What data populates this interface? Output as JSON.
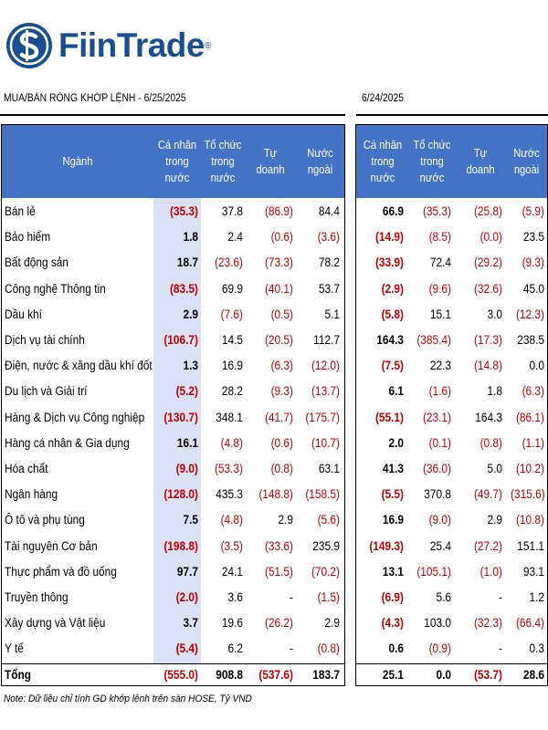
{
  "brand": {
    "name": "FiinTrade",
    "reg": "®"
  },
  "left_title": "MUA/BÁN RÒNG KHỚP LỆNH - 6/25/2025",
  "right_title": "6/24/2025",
  "headers": {
    "sector": "Ngành",
    "individual_l": [
      "Cá nhân",
      "trong",
      "nước"
    ],
    "institution_l": [
      "Tổ chức",
      "trong",
      "nước"
    ],
    "proprietary_l": [
      "Tự doanh"
    ],
    "foreign_l": [
      "Nước",
      "ngoài"
    ],
    "individual_r": [
      "Cá nhân",
      "trong nước"
    ],
    "institution_r": [
      "Tổ chức",
      "trong",
      "nước"
    ],
    "proprietary_r": [
      "Tự doanh"
    ],
    "foreign_r": [
      "Nước",
      "ngoài"
    ]
  },
  "rows": [
    {
      "name": "Bán lẻ",
      "l": [
        "(35.3)",
        "37.8",
        "(86.9)",
        "84.4"
      ],
      "r": [
        "66.9",
        "(35.3)",
        "(25.8)",
        "(5.9)"
      ]
    },
    {
      "name": "Bảo hiểm",
      "l": [
        "1.8",
        "2.4",
        "(0.6)",
        "(3.6)"
      ],
      "r": [
        "(14.9)",
        "(8.5)",
        "(0.0)",
        "23.5"
      ]
    },
    {
      "name": "Bất động sản",
      "l": [
        "18.7",
        "(23.6)",
        "(73.3)",
        "78.2"
      ],
      "r": [
        "(33.9)",
        "72.4",
        "(29.2)",
        "(9.3)"
      ]
    },
    {
      "name": "Công nghệ Thông tin",
      "l": [
        "(83.5)",
        "69.9",
        "(40.1)",
        "53.7"
      ],
      "r": [
        "(2.9)",
        "(9.6)",
        "(32.6)",
        "45.0"
      ]
    },
    {
      "name": "Dầu khí",
      "l": [
        "2.9",
        "(7.6)",
        "(0.5)",
        "5.1"
      ],
      "r": [
        "(5.8)",
        "15.1",
        "3.0",
        "(12.3)"
      ]
    },
    {
      "name": "Dịch vụ tài chính",
      "l": [
        "(106.7)",
        "14.5",
        "(20.5)",
        "112.7"
      ],
      "r": [
        "164.3",
        "(385.4)",
        "(17.3)",
        "238.5"
      ]
    },
    {
      "name": "Điện, nước & xăng dầu khí đốt",
      "l": [
        "1.3",
        "16.9",
        "(6.3)",
        "(12.0)"
      ],
      "r": [
        "(7.5)",
        "22.3",
        "(14.8)",
        "0.0"
      ]
    },
    {
      "name": "Du lịch và Giải trí",
      "l": [
        "(5.2)",
        "28.2",
        "(9.3)",
        "(13.7)"
      ],
      "r": [
        "6.1",
        "(1.6)",
        "1.8",
        "(6.3)"
      ]
    },
    {
      "name": "Hàng & Dịch vụ Công nghiệp",
      "l": [
        "(130.7)",
        "348.1",
        "(41.7)",
        "(175.7)"
      ],
      "r": [
        "(55.1)",
        "(23.1)",
        "164.3",
        "(86.1)"
      ]
    },
    {
      "name": "Hàng cá nhân & Gia dụng",
      "l": [
        "16.1",
        "(4.8)",
        "(0.6)",
        "(10.7)"
      ],
      "r": [
        "2.0",
        "(0.1)",
        "(0.8)",
        "(1.1)"
      ]
    },
    {
      "name": "Hóa chất",
      "l": [
        "(9.0)",
        "(53.3)",
        "(0.8)",
        "63.1"
      ],
      "r": [
        "41.3",
        "(36.0)",
        "5.0",
        "(10.2)"
      ]
    },
    {
      "name": "Ngân hàng",
      "l": [
        "(128.0)",
        "435.3",
        "(148.8)",
        "(158.5)"
      ],
      "r": [
        "(5.5)",
        "370.8",
        "(49.7)",
        "(315.6)"
      ]
    },
    {
      "name": "Ô tô và phụ tùng",
      "l": [
        "7.5",
        "(4.8)",
        "2.9",
        "(5.6)"
      ],
      "r": [
        "16.9",
        "(9.0)",
        "2.9",
        "(10.8)"
      ]
    },
    {
      "name": "Tài nguyên Cơ bản",
      "l": [
        "(198.8)",
        "(3.5)",
        "(33.6)",
        "235.9"
      ],
      "r": [
        "(149.3)",
        "25.4",
        "(27.2)",
        "151.1"
      ]
    },
    {
      "name": "Thực phẩm và đồ uống",
      "l": [
        "97.7",
        "24.1",
        "(51.5)",
        "(70.2)"
      ],
      "r": [
        "13.1",
        "(105.1)",
        "(1.0)",
        "93.1"
      ]
    },
    {
      "name": "Truyền thông",
      "l": [
        "(2.0)",
        "3.6",
        "-",
        "(1.5)"
      ],
      "r": [
        "(6.9)",
        "5.6",
        "-",
        "1.2"
      ]
    },
    {
      "name": "Xây dựng và Vật liệu",
      "l": [
        "3.7",
        "19.6",
        "(26.2)",
        "2.9"
      ],
      "r": [
        "(4.3)",
        "103.0",
        "(32.3)",
        "(66.4)"
      ]
    },
    {
      "name": "Y tế",
      "l": [
        "(5.4)",
        "6.2",
        "-",
        "(0.8)"
      ],
      "r": [
        "0.6",
        "(0.9)",
        "-",
        "0.3"
      ]
    }
  ],
  "total": {
    "name": "Tổng",
    "l": [
      "(555.0)",
      "908.8",
      "(537.6)",
      "183.7"
    ],
    "r": [
      "25.1",
      "0.0",
      "(53.7)",
      "28.6"
    ]
  },
  "note": "Note: Dữ liệu chỉ tính GD khớp lệnh trên sàn HOSE, Tỷ VND",
  "colors": {
    "header": "#4472c4",
    "highlight": "#d9e1f2",
    "negative": "#c00000",
    "brand": "#1a4f8f"
  }
}
